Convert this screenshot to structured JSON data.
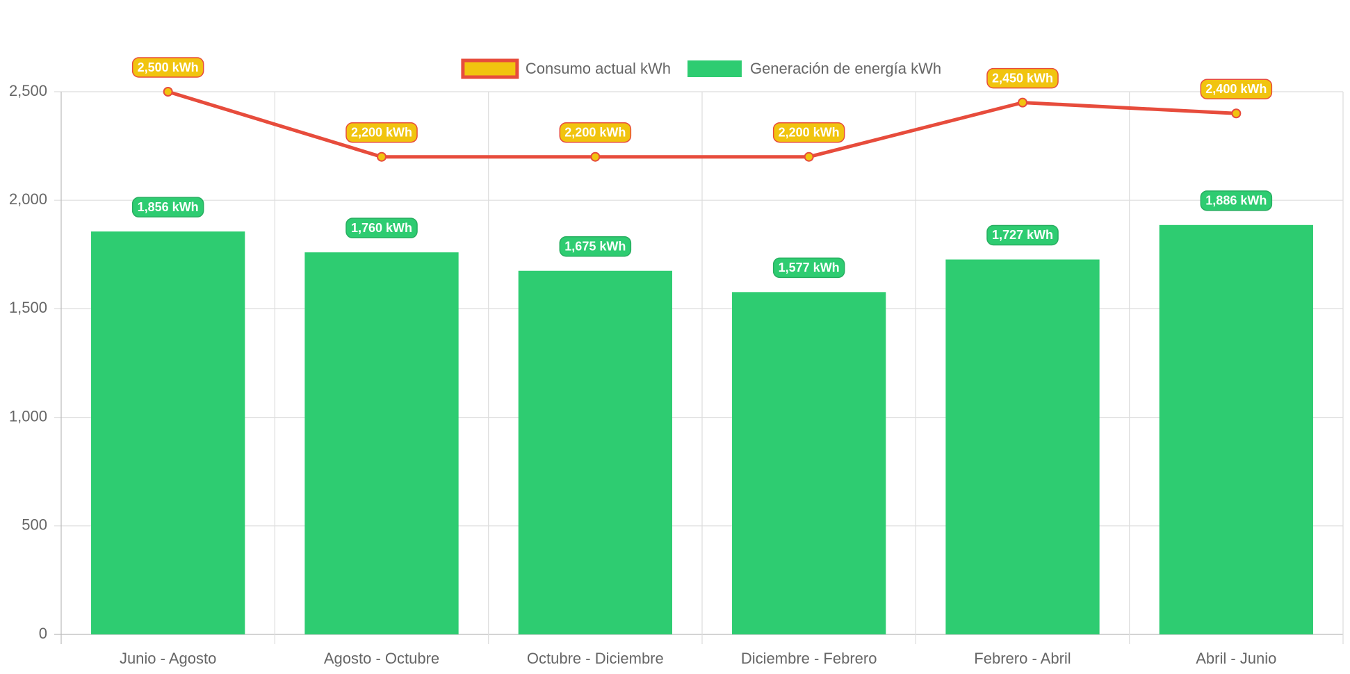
{
  "chart_data": {
    "type": "bar",
    "categories": [
      "Junio - Agosto",
      "Agosto - Octubre",
      "Octubre - Diciembre",
      "Diciembre - Febrero",
      "Febrero - Abril",
      "Abril - Junio"
    ],
    "series": [
      {
        "name": "Consumo actual kWh",
        "type": "line",
        "color": "#e74c3c",
        "fill": "#f1c40f",
        "values": [
          2500,
          2200,
          2200,
          2200,
          2450,
          2400
        ],
        "value_labels": [
          "2,500 kWh",
          "2,200 kWh",
          "2,200 kWh",
          "2,200 kWh",
          "2,450 kWh",
          "2,400 kWh"
        ]
      },
      {
        "name": "Generación de energía kWh",
        "type": "bar",
        "color": "#2ecc71",
        "values": [
          1856,
          1760,
          1675,
          1577,
          1727,
          1886
        ],
        "value_labels": [
          "1,856 kWh",
          "1,760 kWh",
          "1,675 kWh",
          "1,577 kWh",
          "1,727 kWh",
          "1,886 kWh"
        ]
      }
    ],
    "ylim": [
      0,
      2500
    ],
    "yticks": [
      0,
      500,
      {
        "value": 1000,
        "label": "1,000"
      },
      {
        "value": 1500,
        "label": "1,500"
      },
      {
        "value": 2000,
        "label": "2,000"
      },
      {
        "value": 2500,
        "label": "2,500"
      }
    ],
    "grid": true,
    "legend": "top"
  }
}
